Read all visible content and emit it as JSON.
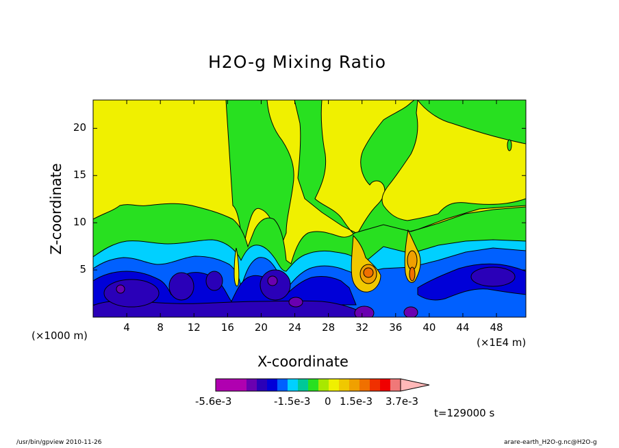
{
  "chart_data": {
    "type": "heatmap",
    "title": "H2O-g Mixing Ratio",
    "xlabel": "X-coordinate",
    "ylabel": "Z-coordinate",
    "x_unit": "(×1E4 m)",
    "y_unit": "(×1000 m)",
    "xlim": [
      0,
      51.5
    ],
    "ylim": [
      0,
      23
    ],
    "xticks": [
      "4",
      "8",
      "12",
      "16",
      "20",
      "24",
      "28",
      "32",
      "36",
      "40",
      "44",
      "48"
    ],
    "yticks": [
      "5",
      "10",
      "15",
      "20"
    ],
    "colorbar": {
      "colors": [
        "#b000b0",
        "#b000b0",
        "#b000b0",
        "#6a00b0",
        "#2a00b8",
        "#0000d8",
        "#0060ff",
        "#00d0ff",
        "#00c898",
        "#28e020",
        "#a8e800",
        "#f0f000",
        "#f0c800",
        "#f0a000",
        "#f07000",
        "#f03000",
        "#f00000",
        "#f07878",
        "#ffb8b8"
      ],
      "labels": [
        "-5.6e-3",
        "-1.5e-3",
        "0",
        "1.5e-3",
        "3.7e-3"
      ]
    },
    "time_label": "t=129000 s"
  },
  "footer": {
    "left": "/usr/bin/gpview   2010-11-26",
    "right": "arare-earth_H2O-g.nc@H2O-g"
  }
}
